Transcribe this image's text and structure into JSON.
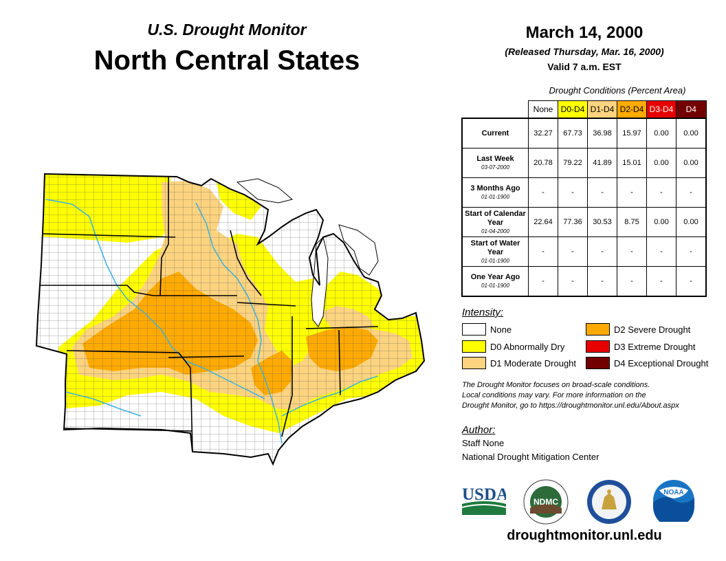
{
  "header": {
    "subtitle": "U.S. Drought Monitor",
    "title": "North Central States"
  },
  "map_date": {
    "date": "March 14, 2000",
    "released": "(Released Thursday, Mar. 16, 2000)",
    "valid": "Valid 7 a.m. EST"
  },
  "conditions_table": {
    "caption": "Drought Conditions (Percent Area)",
    "columns": [
      {
        "label": "None",
        "color": "#ffffff",
        "text_color": "#000000"
      },
      {
        "label": "D0-D4",
        "color": "#ffff00",
        "text_color": "#000000"
      },
      {
        "label": "D1-D4",
        "color": "#fcd37f",
        "text_color": "#000000"
      },
      {
        "label": "D2-D4",
        "color": "#ffaa00",
        "text_color": "#000000"
      },
      {
        "label": "D3-D4",
        "color": "#e60000",
        "text_color": "#ffffff"
      },
      {
        "label": "D4",
        "color": "#730000",
        "text_color": "#ffffff"
      }
    ],
    "rows": [
      {
        "label": "Current",
        "date": "",
        "values": [
          "32.27",
          "67.73",
          "36.98",
          "15.97",
          "0.00",
          "0.00"
        ]
      },
      {
        "label": "Last Week",
        "date": "03-07-2000",
        "values": [
          "20.78",
          "79.22",
          "41.89",
          "15.01",
          "0.00",
          "0.00"
        ]
      },
      {
        "label": "3 Months Ago",
        "date": "01-01-1900",
        "values": [
          "-",
          "-",
          "-",
          "-",
          "-",
          "-"
        ]
      },
      {
        "label": "Start of Calendar Year",
        "date": "01-04-2000",
        "values": [
          "22.64",
          "77.36",
          "30.53",
          "8.75",
          "0.00",
          "0.00"
        ]
      },
      {
        "label": "Start of Water Year",
        "date": "01-01-1900",
        "values": [
          "-",
          "-",
          "-",
          "-",
          "-",
          "-"
        ]
      },
      {
        "label": "One Year Ago",
        "date": "01-01-1900",
        "values": [
          "-",
          "-",
          "-",
          "-",
          "-",
          "-"
        ]
      }
    ]
  },
  "intensity_legend": {
    "title": "Intensity:",
    "items": [
      {
        "label": "None",
        "color": "#ffffff"
      },
      {
        "label": "D0 Abnormally Dry",
        "color": "#ffff00"
      },
      {
        "label": "D1 Moderate Drought",
        "color": "#fcd37f"
      },
      {
        "label": "D2 Severe Drought",
        "color": "#ffaa00"
      },
      {
        "label": "D3 Extreme Drought",
        "color": "#e60000"
      },
      {
        "label": "D4 Exceptional Drought",
        "color": "#730000"
      }
    ]
  },
  "note": {
    "line1": "The Drought Monitor focuses on broad-scale conditions.",
    "line2": "Local conditions may vary. For more information on the",
    "line3": "Drought Monitor, go to https://droughtmonitor.unl.edu/About.aspx"
  },
  "author": {
    "title": "Author:",
    "name": "Staff None",
    "organization": "National Drought Mitigation Center"
  },
  "logos": {
    "usda": "USDA",
    "ndmc": "NDMC",
    "noaa": "NOAA"
  },
  "footer": {
    "url": "droughtmonitor.unl.edu"
  },
  "map": {
    "region": "North Central States",
    "colors": {
      "none": "#ffffff",
      "d0": "#ffff00",
      "d1": "#fcd37f",
      "d2": "#ffaa00",
      "water": "#3ab0e0",
      "state_border": "#000000",
      "county_border": "#555555"
    }
  }
}
